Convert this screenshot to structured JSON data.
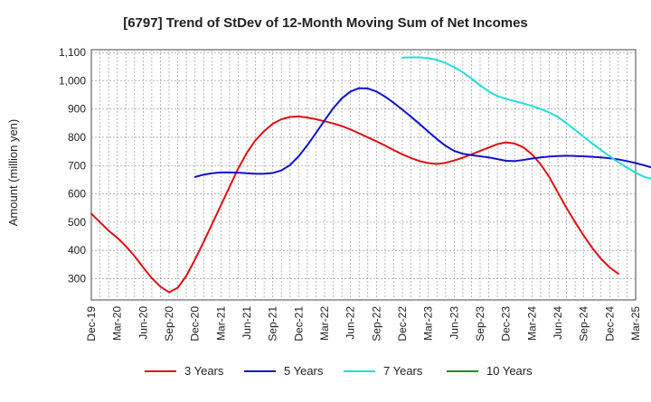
{
  "chart_data": {
    "type": "line",
    "title": "[6797]  Trend of StDev of 12-Month Moving Sum of Net Incomes",
    "ylabel": "Amount (million yen)",
    "xlabel": "",
    "ylim": [
      225,
      1110
    ],
    "yticks": [
      300,
      400,
      500,
      600,
      700,
      800,
      900,
      1000,
      1100
    ],
    "ytick_labels": [
      "300",
      "400",
      "500",
      "600",
      "700",
      "800",
      "900",
      "1,000",
      "1,100"
    ],
    "x_range": [
      "2019-12",
      "2025-03"
    ],
    "xtick_labels": [
      "Dec-19",
      "Mar-20",
      "Jun-20",
      "Sep-20",
      "Dec-20",
      "Mar-21",
      "Jun-21",
      "Sep-21",
      "Dec-21",
      "Mar-22",
      "Jun-22",
      "Sep-22",
      "Dec-22",
      "Mar-23",
      "Jun-23",
      "Sep-23",
      "Dec-23",
      "Mar-24",
      "Jun-24",
      "Sep-24",
      "Dec-24",
      "Mar-25"
    ],
    "grid": true,
    "legend_position": "bottom",
    "series": [
      {
        "name": "3 Years",
        "color": "#dd1111",
        "points": [
          [
            "2019-12",
            530
          ],
          [
            "2020-01",
            500
          ],
          [
            "2020-02",
            470
          ],
          [
            "2020-03",
            445
          ],
          [
            "2020-04",
            415
          ],
          [
            "2020-05",
            380
          ],
          [
            "2020-06",
            340
          ],
          [
            "2020-07",
            302
          ],
          [
            "2020-08",
            272
          ],
          [
            "2020-09",
            252
          ],
          [
            "2020-10",
            268
          ],
          [
            "2020-11",
            310
          ],
          [
            "2020-12",
            368
          ],
          [
            "2021-01",
            430
          ],
          [
            "2021-02",
            495
          ],
          [
            "2021-03",
            560
          ],
          [
            "2021-04",
            625
          ],
          [
            "2021-05",
            690
          ],
          [
            "2021-06",
            745
          ],
          [
            "2021-07",
            790
          ],
          [
            "2021-08",
            822
          ],
          [
            "2021-09",
            848
          ],
          [
            "2021-10",
            864
          ],
          [
            "2021-11",
            872
          ],
          [
            "2021-12",
            874
          ],
          [
            "2022-01",
            870
          ],
          [
            "2022-02",
            864
          ],
          [
            "2022-03",
            857
          ],
          [
            "2022-04",
            849
          ],
          [
            "2022-05",
            840
          ],
          [
            "2022-06",
            828
          ],
          [
            "2022-07",
            814
          ],
          [
            "2022-08",
            800
          ],
          [
            "2022-09",
            786
          ],
          [
            "2022-10",
            771
          ],
          [
            "2022-11",
            755
          ],
          [
            "2022-12",
            740
          ],
          [
            "2023-01",
            727
          ],
          [
            "2023-02",
            716
          ],
          [
            "2023-03",
            709
          ],
          [
            "2023-04",
            706
          ],
          [
            "2023-05",
            710
          ],
          [
            "2023-06",
            718
          ],
          [
            "2023-07",
            728
          ],
          [
            "2023-08",
            740
          ],
          [
            "2023-09",
            752
          ],
          [
            "2023-10",
            764
          ],
          [
            "2023-11",
            776
          ],
          [
            "2023-12",
            782
          ],
          [
            "2024-01",
            778
          ],
          [
            "2024-02",
            765
          ],
          [
            "2024-03",
            740
          ],
          [
            "2024-04",
            705
          ],
          [
            "2024-05",
            660
          ],
          [
            "2024-06",
            605
          ],
          [
            "2024-07",
            550
          ],
          [
            "2024-08",
            500
          ],
          [
            "2024-09",
            452
          ],
          [
            "2024-10",
            408
          ],
          [
            "2024-11",
            370
          ],
          [
            "2024-12",
            340
          ],
          [
            "2025-01",
            318
          ]
        ]
      },
      {
        "name": "5 Years",
        "color": "#1111cc",
        "points": [
          [
            "2020-12",
            660
          ],
          [
            "2021-01",
            668
          ],
          [
            "2021-02",
            673
          ],
          [
            "2021-03",
            676
          ],
          [
            "2021-04",
            676
          ],
          [
            "2021-05",
            675
          ],
          [
            "2021-06",
            673
          ],
          [
            "2021-07",
            671
          ],
          [
            "2021-08",
            671
          ],
          [
            "2021-09",
            674
          ],
          [
            "2021-10",
            683
          ],
          [
            "2021-11",
            702
          ],
          [
            "2021-12",
            733
          ],
          [
            "2022-01",
            772
          ],
          [
            "2022-02",
            815
          ],
          [
            "2022-03",
            860
          ],
          [
            "2022-04",
            903
          ],
          [
            "2022-05",
            938
          ],
          [
            "2022-06",
            962
          ],
          [
            "2022-07",
            974
          ],
          [
            "2022-08",
            973
          ],
          [
            "2022-09",
            962
          ],
          [
            "2022-10",
            944
          ],
          [
            "2022-11",
            922
          ],
          [
            "2022-12",
            898
          ],
          [
            "2023-01",
            873
          ],
          [
            "2023-02",
            847
          ],
          [
            "2023-03",
            820
          ],
          [
            "2023-04",
            794
          ],
          [
            "2023-05",
            770
          ],
          [
            "2023-06",
            752
          ],
          [
            "2023-07",
            742
          ],
          [
            "2023-08",
            737
          ],
          [
            "2023-09",
            733
          ],
          [
            "2023-10",
            729
          ],
          [
            "2023-11",
            723
          ],
          [
            "2023-12",
            717
          ],
          [
            "2024-01",
            716
          ],
          [
            "2024-02",
            720
          ],
          [
            "2024-03",
            725
          ],
          [
            "2024-04",
            729
          ],
          [
            "2024-05",
            732
          ],
          [
            "2024-06",
            734
          ],
          [
            "2024-07",
            735
          ],
          [
            "2024-08",
            734
          ],
          [
            "2024-09",
            733
          ],
          [
            "2024-10",
            731
          ],
          [
            "2024-11",
            729
          ],
          [
            "2024-12",
            726
          ],
          [
            "2025-01",
            722
          ],
          [
            "2025-02",
            716
          ],
          [
            "2025-03",
            709
          ],
          [
            "2025-04",
            701
          ],
          [
            "2025-05",
            692
          ],
          [
            "2025-06",
            682
          ],
          [
            "2025-07",
            670
          ]
        ]
      },
      {
        "name": "7 Years",
        "color": "#22dddd",
        "points": [
          [
            "2022-12",
            1082
          ],
          [
            "2023-01",
            1083
          ],
          [
            "2023-02",
            1083
          ],
          [
            "2023-03",
            1080
          ],
          [
            "2023-04",
            1074
          ],
          [
            "2023-05",
            1063
          ],
          [
            "2023-06",
            1048
          ],
          [
            "2023-07",
            1030
          ],
          [
            "2023-08",
            1008
          ],
          [
            "2023-09",
            984
          ],
          [
            "2023-10",
            962
          ],
          [
            "2023-11",
            946
          ],
          [
            "2023-12",
            936
          ],
          [
            "2024-01",
            928
          ],
          [
            "2024-02",
            920
          ],
          [
            "2024-03",
            911
          ],
          [
            "2024-04",
            900
          ],
          [
            "2024-05",
            888
          ],
          [
            "2024-06",
            872
          ],
          [
            "2024-07",
            850
          ],
          [
            "2024-08",
            826
          ],
          [
            "2024-09",
            802
          ],
          [
            "2024-10",
            778
          ],
          [
            "2024-11",
            755
          ],
          [
            "2024-12",
            733
          ],
          [
            "2025-01",
            712
          ],
          [
            "2025-02",
            693
          ],
          [
            "2025-03",
            675
          ],
          [
            "2025-04",
            660
          ],
          [
            "2025-05",
            652
          ],
          [
            "2025-06",
            651
          ],
          [
            "2025-07",
            652
          ]
        ]
      },
      {
        "name": "10 Years",
        "color": "#228822",
        "points": []
      }
    ]
  }
}
